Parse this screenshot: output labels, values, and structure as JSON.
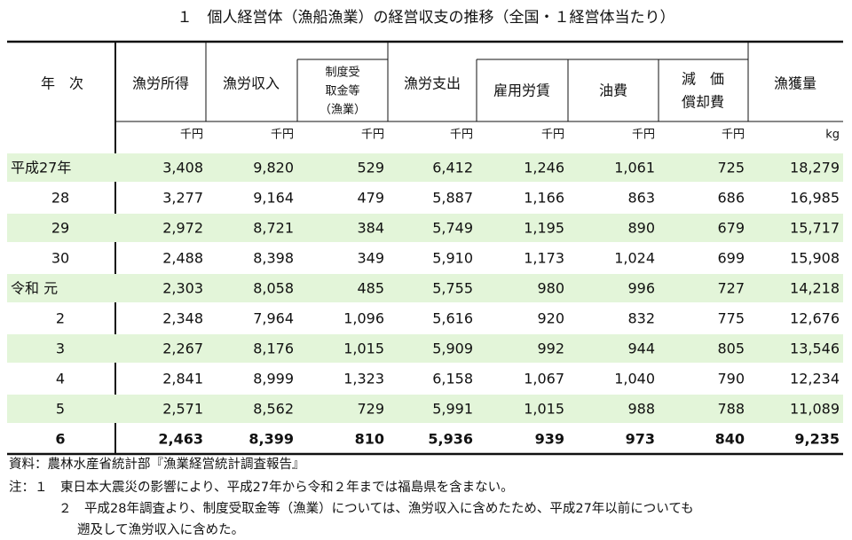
{
  "title": "１　個人経営体（漁船漁業）の経営収支の推移（全国・１経営体当たり）",
  "table": {
    "headers": [
      "年　次",
      "漁労所得",
      "漁労収入",
      [
        "制度受",
        "取金等",
        "（漁業）"
      ],
      "漁労支出",
      "雇用労賃",
      "油費",
      [
        "減　価",
        "償却費"
      ],
      "漁獲量"
    ],
    "units": [
      "千円",
      "千円",
      "千円",
      "千円",
      "千円",
      "千円",
      "千円",
      "kg"
    ],
    "rows": [
      [
        "平成27年",
        "3,408",
        "9,820",
        "529",
        "6,412",
        "1,246",
        "1,061",
        "725",
        "18,279"
      ],
      [
        "28",
        "3,277",
        "9,164",
        "479",
        "5,887",
        "1,166",
        "863",
        "686",
        "16,985"
      ],
      [
        "29",
        "2,972",
        "8,721",
        "384",
        "5,749",
        "1,195",
        "890",
        "679",
        "15,717"
      ],
      [
        "30",
        "2,488",
        "8,398",
        "349",
        "5,910",
        "1,173",
        "1,024",
        "699",
        "15,908"
      ],
      [
        "令和 元",
        "2,303",
        "8,058",
        "485",
        "5,755",
        "980",
        "996",
        "727",
        "14,218"
      ],
      [
        "2",
        "2,348",
        "7,964",
        "1,096",
        "5,616",
        "920",
        "832",
        "775",
        "12,676"
      ],
      [
        "3",
        "2,267",
        "8,176",
        "1,015",
        "5,909",
        "992",
        "944",
        "805",
        "13,546"
      ],
      [
        "4",
        "2,841",
        "8,999",
        "1,323",
        "6,158",
        "1,067",
        "1,040",
        "790",
        "12,234"
      ],
      [
        "5",
        "2,571",
        "8,562",
        "729",
        "5,991",
        "1,015",
        "988",
        "788",
        "11,089"
      ],
      [
        "6",
        "2,463",
        "8,399",
        "810",
        "5,936",
        "939",
        "973",
        "840",
        "9,235"
      ]
    ]
  },
  "notes": [
    "資料：農林水産省統計部『漁業経営統計調査報告』",
    "注：１　東日本大震災の影響により、平成27年から令和２年までは福島県を含まない。",
    "２　平成28年調査より、制度受取金等（漁業）については、漁労収入に含めたため、平成27年以前についても",
    "遡及して漁労収入に含めた。"
  ]
}
